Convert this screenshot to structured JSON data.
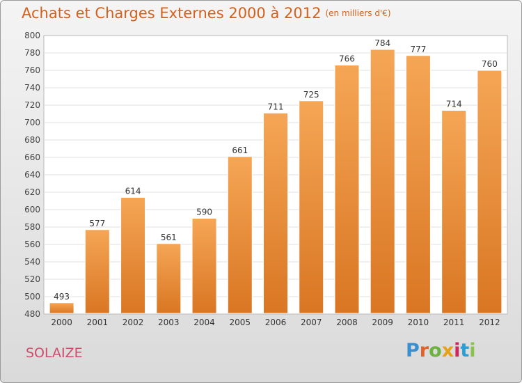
{
  "header": {
    "title": "Achats et Charges Externes 2000 à 2012",
    "unit": "(en milliers d'€)"
  },
  "footer": {
    "commune": "SOLAIZE",
    "brand": "Proxiti",
    "brand_colors": [
      "#3a8fd0",
      "#e0632b",
      "#6cb33e",
      "#e6a117",
      "#d4245e",
      "#2a9fd6",
      "#8bc34a"
    ]
  },
  "chart_data": {
    "type": "bar",
    "title": "Achats et Charges Externes 2000 à 2012",
    "subtitle": "(en milliers d'€)",
    "categories": [
      "2000",
      "2001",
      "2002",
      "2003",
      "2004",
      "2005",
      "2006",
      "2007",
      "2008",
      "2009",
      "2010",
      "2011",
      "2012"
    ],
    "values": [
      493,
      577,
      614,
      561,
      590,
      661,
      711,
      725,
      766,
      784,
      777,
      714,
      760
    ],
    "data_labels": [
      "493",
      "577",
      "614",
      "561",
      "590",
      "661",
      "711",
      "725",
      "766",
      "784",
      "777",
      "714",
      "760"
    ],
    "ylim": [
      480,
      800
    ],
    "yticks": [
      480,
      500,
      520,
      540,
      560,
      580,
      600,
      620,
      640,
      660,
      680,
      700,
      720,
      740,
      760,
      780,
      800
    ],
    "grid": true,
    "bar_color_top": "#f5a655",
    "bar_color_bottom": "#d97623"
  }
}
